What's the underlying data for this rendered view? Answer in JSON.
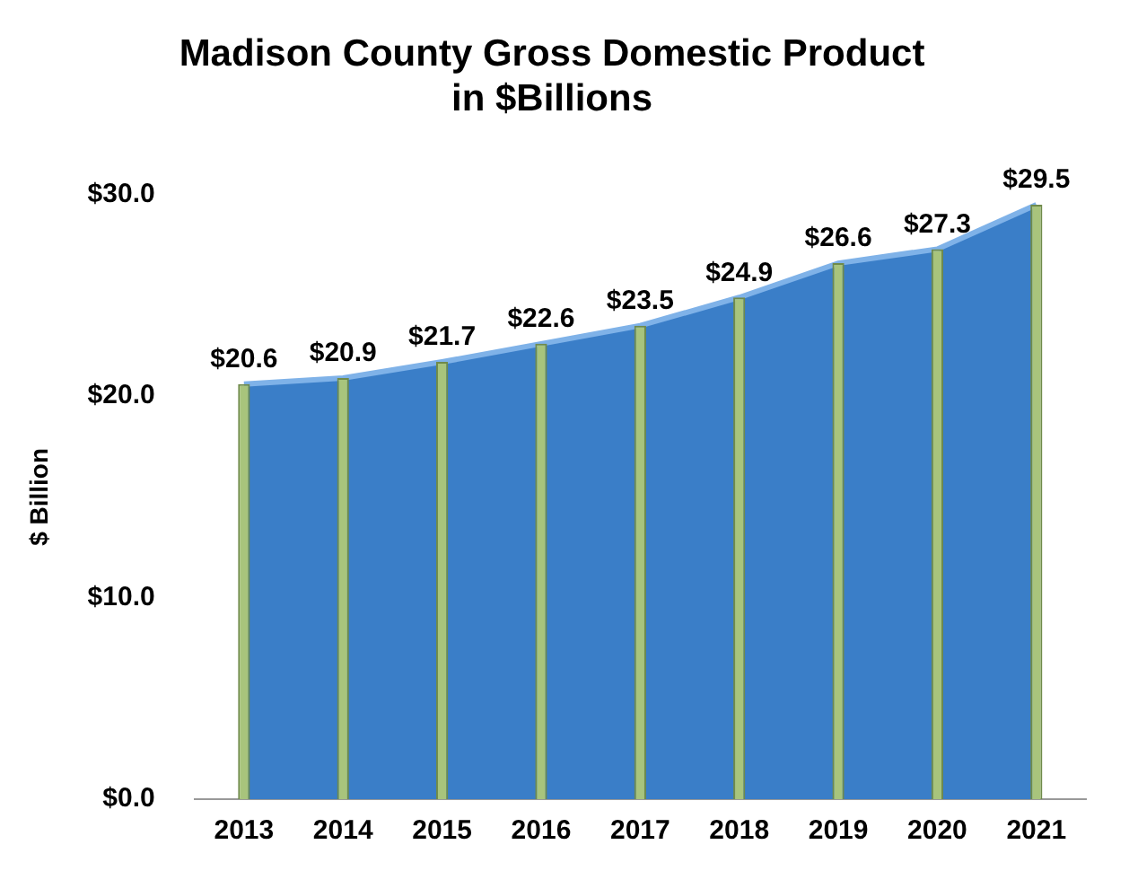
{
  "chart_data": {
    "type": "area",
    "title": "Madison County Gross Domestic Product\nin $Billions",
    "ylabel": "$ Billion",
    "categories": [
      "2013",
      "2014",
      "2015",
      "2016",
      "2017",
      "2018",
      "2019",
      "2020",
      "2021"
    ],
    "series": [
      {
        "color": "#3a7ec8",
        "values": [
          20.6,
          20.9,
          21.7,
          22.6,
          23.5,
          24.9,
          26.6,
          27.3,
          29.5
        ],
        "value_labels": [
          "$20.6",
          "$20.9",
          "$21.7",
          "$22.6",
          "$23.5",
          "$24.9",
          "$26.6",
          "$27.3",
          "$29.5"
        ]
      },
      {
        "type": "bar",
        "color": "#a8c47c",
        "values": [
          20.6,
          20.9,
          21.7,
          22.6,
          23.5,
          24.9,
          26.6,
          27.3,
          29.5
        ]
      }
    ],
    "ylim": [
      0,
      30
    ],
    "yticks": [
      {
        "value": 0,
        "label": "$0.0"
      },
      {
        "value": 10,
        "label": "$10.0"
      },
      {
        "value": 20,
        "label": "$20.0"
      },
      {
        "value": 30,
        "label": "$30.0"
      }
    ],
    "grid": false,
    "legend": false
  }
}
